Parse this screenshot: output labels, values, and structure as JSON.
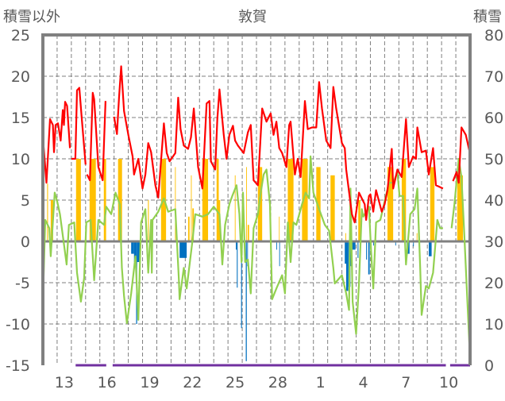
{
  "chart_data": {
    "type": "line",
    "title": "敦賀",
    "ylabel_left": "積雪以外",
    "ylabel_right": "積雪",
    "ylim_left": [
      -15,
      25
    ],
    "ylim_right": [
      0,
      80
    ],
    "yticks_left": [
      "25",
      "20",
      "15",
      "10",
      "5",
      "0",
      "-5",
      "-10",
      "-15"
    ],
    "yticks_right": [
      "80",
      "70",
      "60",
      "50",
      "40",
      "30",
      "20",
      "10",
      "0"
    ],
    "xlim_days": [
      0,
      30
    ],
    "xtick_labels": [
      "13",
      "16",
      "19",
      "22",
      "25",
      "28",
      "1",
      "4",
      "7",
      "10"
    ],
    "grid": true,
    "colors": {
      "red_line": "#ff0000",
      "green_line": "#92d050",
      "orange_bars": "#ffc000",
      "blue_bars": "#0070c0",
      "purple_line": "#7030a0",
      "axis": "#808080"
    },
    "red_line": [
      [
        0,
        12.6
      ],
      [
        0.25,
        7.1
      ],
      [
        0.5,
        14.8
      ],
      [
        0.7,
        14.1
      ],
      [
        0.78,
        10.8
      ],
      [
        0.89,
        14.1
      ],
      [
        1.06,
        14.3
      ],
      [
        1.25,
        12.2
      ],
      [
        1.4,
        15.9
      ],
      [
        1.48,
        14.1
      ],
      [
        1.56,
        16.9
      ],
      [
        1.7,
        16.4
      ],
      [
        1.9,
        11.3
      ],
      null,
      [
        2.0,
        10
      ],
      [
        2.28,
        10
      ],
      [
        2.4,
        18.3
      ],
      [
        2.56,
        18.6
      ],
      [
        2.72,
        15.1
      ],
      [
        3.0,
        9.3
      ],
      null,
      [
        3.1,
        8.1
      ],
      [
        3.3,
        7.4
      ],
      [
        3.5,
        18
      ],
      [
        3.6,
        17.2
      ],
      [
        3.9,
        9
      ],
      [
        4.2,
        7.4
      ],
      [
        4.4,
        17
      ],
      null,
      [
        5.0,
        15.1
      ],
      [
        5.2,
        13
      ],
      [
        5.35,
        17.4
      ],
      [
        5.5,
        21.2
      ],
      [
        5.7,
        15.8
      ],
      [
        6.0,
        12.9
      ],
      [
        6.3,
        10.3
      ],
      [
        6.4,
        8.1
      ],
      [
        6.7,
        10
      ],
      [
        7.0,
        6.4
      ],
      [
        7.2,
        8.1
      ],
      [
        7.4,
        11.9
      ],
      [
        7.6,
        10.8
      ],
      [
        7.9,
        6.8
      ],
      [
        8.1,
        5.3
      ],
      [
        8.5,
        14.3
      ],
      [
        8.7,
        10.7
      ],
      [
        8.9,
        9.7
      ],
      [
        9.3,
        10.7
      ],
      [
        9.5,
        17.4
      ],
      [
        9.67,
        13.6
      ],
      [
        9.9,
        11.6
      ],
      [
        10.2,
        11.2
      ],
      [
        10.4,
        12.6
      ],
      [
        10.6,
        16.1
      ],
      [
        10.9,
        9
      ],
      [
        11.2,
        6.4
      ],
      [
        11.5,
        16.7
      ],
      [
        11.7,
        17
      ],
      [
        11.8,
        9.7
      ],
      [
        12.1,
        8.7
      ],
      [
        12.25,
        14.8
      ],
      [
        12.4,
        18.4
      ],
      [
        12.7,
        12.9
      ],
      [
        12.9,
        10
      ],
      [
        13.1,
        12.9
      ],
      [
        13.35,
        14
      ],
      [
        13.5,
        12.2
      ],
      [
        13.7,
        11.6
      ],
      [
        14.1,
        10.7
      ],
      [
        14.4,
        13.2
      ],
      [
        14.6,
        14.1
      ],
      [
        14.8,
        7.4
      ],
      [
        15.1,
        6.8
      ],
      [
        15.4,
        16.1
      ],
      [
        15.7,
        14.5
      ],
      [
        16.0,
        15.5
      ],
      [
        16.2,
        12.9
      ],
      [
        16.4,
        14.5
      ],
      [
        16.6,
        11.3
      ],
      [
        16.8,
        10.7
      ],
      [
        17.1,
        9
      ],
      [
        17.3,
        14.1
      ],
      [
        17.4,
        14.5
      ],
      [
        17.7,
        8.1
      ],
      [
        17.9,
        10
      ],
      [
        18.1,
        7.8
      ],
      [
        18.4,
        17
      ],
      [
        18.6,
        13.6
      ],
      [
        18.9,
        13.8
      ],
      [
        19.2,
        13.8
      ],
      [
        19.4,
        19.3
      ],
      [
        19.6,
        16.1
      ],
      [
        19.9,
        12.2
      ],
      [
        20.2,
        11.3
      ],
      [
        20.4,
        18.7
      ],
      [
        20.6,
        16.1
      ],
      [
        21.0,
        11.9
      ],
      [
        21.2,
        11.3
      ],
      [
        21.3,
        8.7
      ],
      [
        21.7,
        3.3
      ],
      [
        21.9,
        2.3
      ],
      [
        22.2,
        5.9
      ],
      [
        22.4,
        5.2
      ],
      [
        22.6,
        4.5
      ],
      [
        22.7,
        2.6
      ],
      [
        22.9,
        5.5
      ],
      [
        23.0,
        5.7
      ],
      [
        23.2,
        3.6
      ],
      [
        23.4,
        6.2
      ],
      [
        23.8,
        3.6
      ],
      [
        24.0,
        4.5
      ],
      [
        24.2,
        6.2
      ],
      [
        24.5,
        11.2
      ],
      [
        24.6,
        6.4
      ],
      [
        24.9,
        8.7
      ],
      [
        25.2,
        7.8
      ],
      [
        25.5,
        14.8
      ],
      [
        25.7,
        9
      ],
      [
        26.0,
        10.3
      ],
      [
        26.2,
        10
      ],
      [
        26.3,
        13.8
      ],
      [
        26.6,
        10.8
      ],
      [
        26.9,
        11
      ],
      [
        27.1,
        8.1
      ],
      [
        27.4,
        11.3
      ],
      [
        27.6,
        6.8
      ],
      [
        28.1,
        6.4
      ],
      null,
      [
        28.8,
        7.3
      ],
      [
        29.05,
        8.4
      ],
      [
        29.2,
        7.1
      ],
      [
        29.4,
        13.8
      ],
      [
        29.7,
        12.9
      ],
      [
        29.95,
        11
      ]
    ],
    "green_line": [
      [
        0,
        -7.3
      ],
      [
        0.17,
        2.6
      ],
      [
        0.45,
        1.6
      ],
      [
        0.55,
        -1.8
      ],
      [
        0.83,
        5.9
      ],
      [
        1.0,
        4.9
      ],
      [
        1.2,
        3.3
      ],
      [
        1.5,
        -0.6
      ],
      [
        1.67,
        -2.8
      ],
      [
        1.83,
        2
      ],
      [
        2.2,
        2.3
      ],
      [
        2.4,
        -3.8
      ],
      [
        2.67,
        -7.3
      ],
      [
        2.9,
        -4.4
      ],
      [
        3.05,
        2.3
      ],
      [
        3.35,
        2.6
      ],
      [
        3.6,
        -4.7
      ],
      [
        3.9,
        2.6
      ],
      [
        4.3,
        2
      ],
      [
        4.45,
        4.2
      ],
      [
        4.8,
        3.3
      ],
      [
        5.1,
        5.9
      ],
      [
        5.4,
        4.5
      ],
      [
        5.55,
        -3.2
      ],
      [
        5.7,
        -6.6
      ],
      [
        5.9,
        -9.9
      ],
      [
        6.2,
        -6.3
      ],
      [
        6.5,
        -1.8
      ],
      [
        6.7,
        -9.5
      ],
      [
        6.9,
        2.3
      ],
      [
        7.2,
        3.9
      ],
      [
        7.4,
        -3.8
      ],
      [
        7.6,
        2.6
      ],
      [
        7.65,
        -3.8
      ],
      [
        7.7,
        2.6
      ],
      [
        8.1,
        3.6
      ],
      [
        8.5,
        5.2
      ],
      [
        8.8,
        3.6
      ],
      [
        9.3,
        3.9
      ],
      [
        9.55,
        -4.7
      ],
      [
        9.6,
        -7
      ],
      [
        9.9,
        -3.2
      ],
      [
        10.1,
        -5.7
      ],
      [
        10.5,
        0
      ],
      [
        10.7,
        3.3
      ],
      [
        11.2,
        3
      ],
      [
        11.6,
        3.3
      ],
      [
        12.0,
        4.2
      ],
      [
        12.4,
        3.3
      ],
      [
        12.6,
        -2.8
      ],
      [
        12.8,
        2
      ],
      [
        13.1,
        4.5
      ],
      [
        13.3,
        5.5
      ],
      [
        13.6,
        6.8
      ],
      [
        13.8,
        3.3
      ],
      [
        13.95,
        -2.5
      ],
      [
        14.05,
        5.9
      ],
      [
        14.2,
        -2.5
      ],
      [
        14.4,
        -2.2
      ],
      [
        14.6,
        -6.3
      ],
      [
        14.8,
        1.6
      ],
      [
        15.1,
        3.3
      ],
      [
        15.3,
        5.9
      ],
      [
        15.5,
        8.1
      ],
      [
        15.7,
        8.7
      ],
      [
        15.95,
        4.5
      ],
      [
        16.1,
        -7
      ],
      [
        16.4,
        -5.7
      ],
      [
        16.8,
        -4.1
      ],
      [
        17.0,
        -6.3
      ],
      [
        17.2,
        2.3
      ],
      [
        17.4,
        -2.5
      ],
      [
        17.6,
        2.3
      ],
      [
        17.8,
        2
      ],
      [
        18.2,
        4.5
      ],
      [
        18.45,
        5.9
      ],
      [
        18.7,
        5.2
      ],
      [
        18.8,
        10.3
      ],
      [
        19.0,
        5.9
      ],
      [
        19.4,
        3.9
      ],
      [
        19.8,
        2
      ],
      [
        20.1,
        1.3
      ],
      [
        20.4,
        -3.2
      ],
      [
        20.5,
        -5.1
      ],
      [
        21.0,
        -4.1
      ],
      [
        21.3,
        -6.3
      ],
      [
        21.5,
        -8.3
      ],
      [
        21.6,
        6.4
      ],
      [
        21.75,
        -7.3
      ],
      [
        22.0,
        -11.2
      ],
      [
        22.2,
        -5.1
      ],
      [
        22.4,
        3.9
      ],
      [
        22.5,
        3
      ],
      [
        22.9,
        4.2
      ],
      [
        23.05,
        -1.3
      ],
      [
        23.2,
        -5.7
      ],
      [
        23.4,
        2.3
      ],
      [
        23.7,
        2.6
      ],
      [
        24.3,
        7.1
      ],
      [
        24.6,
        7.1
      ],
      [
        24.9,
        8.4
      ],
      [
        25.05,
        5.5
      ],
      [
        25.3,
        5.5
      ],
      [
        25.5,
        -2.8
      ],
      [
        25.8,
        3.3
      ],
      [
        26.1,
        3.9
      ],
      [
        26.3,
        6.4
      ],
      [
        26.5,
        -3.2
      ],
      [
        26.6,
        -8.9
      ],
      [
        26.9,
        -5.4
      ],
      [
        27.1,
        -5.7
      ],
      [
        27.4,
        -3.8
      ],
      [
        27.7,
        2.6
      ],
      [
        27.9,
        1.6
      ],
      [
        28.1,
        1.6
      ],
      null,
      [
        28.7,
        1.6
      ],
      [
        28.9,
        4.5
      ],
      [
        29.2,
        10
      ],
      [
        29.4,
        7.8
      ],
      [
        29.6,
        0.7
      ],
      [
        29.95,
        -12.4
      ]
    ],
    "orange_bars": [
      [
        0.3,
        0.36,
        7
      ],
      [
        0.55,
        0.72,
        5
      ],
      [
        2.33,
        2.67,
        10
      ],
      [
        3.28,
        3.72,
        10
      ],
      [
        4.28,
        4.44,
        10
      ],
      [
        5.28,
        5.56,
        10
      ],
      [
        7.38,
        7.44,
        5
      ],
      [
        8.3,
        8.65,
        10
      ],
      [
        9.28,
        9.33,
        9
      ],
      [
        10.2,
        10.3,
        3
      ],
      [
        10.4,
        10.45,
        8
      ],
      [
        10.5,
        10.6,
        4
      ],
      [
        11.2,
        11.6,
        10
      ],
      [
        12.2,
        12.35,
        10
      ],
      [
        12.35,
        12.45,
        5
      ],
      [
        13.48,
        13.53,
        8
      ],
      [
        14.28,
        14.33,
        9
      ],
      [
        14.38,
        14.48,
        2
      ],
      [
        15.1,
        15.4,
        9
      ],
      [
        16.58,
        16.62,
        3
      ],
      [
        17.2,
        17.6,
        10
      ],
      [
        18.2,
        18.6,
        10
      ],
      [
        19.2,
        19.5,
        9
      ],
      [
        20.2,
        20.5,
        8
      ],
      [
        21.25,
        21.3,
        1
      ],
      [
        22.15,
        22.3,
        5
      ],
      [
        24.2,
        24.6,
        9
      ],
      [
        25.2,
        25.5,
        10
      ],
      [
        26.25,
        26.3,
        1
      ],
      [
        27.2,
        27.5,
        9
      ],
      [
        29.1,
        29.5,
        8
      ]
    ],
    "blue_bars": [
      [
        6.2,
        6.4,
        -1.5
      ],
      [
        6.4,
        6.55,
        -2.5
      ],
      [
        6.55,
        6.62,
        -10
      ],
      [
        6.62,
        6.8,
        -2.5
      ],
      [
        9.6,
        10.1,
        -2
      ],
      [
        13.55,
        13.62,
        -1
      ],
      [
        13.62,
        13.68,
        -5.6
      ],
      [
        13.92,
        13.98,
        -10.5
      ],
      [
        14.25,
        14.32,
        -14.5
      ],
      [
        14.35,
        14.4,
        -3
      ],
      [
        16.4,
        16.45,
        -1
      ],
      [
        16.6,
        16.65,
        -3
      ],
      [
        21.2,
        21.3,
        -2.7
      ],
      [
        21.3,
        21.45,
        -6
      ],
      [
        21.45,
        21.6,
        -5.5
      ],
      [
        21.6,
        21.7,
        -3
      ],
      [
        21.7,
        21.95,
        -1
      ],
      [
        22.1,
        22.16,
        -2
      ],
      [
        22.7,
        22.76,
        -2.2
      ],
      [
        22.85,
        22.95,
        -4
      ],
      [
        23.2,
        23.25,
        -0.5
      ],
      [
        24.75,
        24.8,
        -0.5
      ],
      [
        25.55,
        25.75,
        -1.5
      ],
      [
        26.0,
        26.05,
        -0.6
      ],
      [
        27.1,
        27.3,
        -1.8
      ],
      [
        29.9,
        29.95,
        -2
      ]
    ],
    "purple_line_segments_right_axis": [
      [
        2.3,
        4.45,
        0
      ],
      [
        4.9,
        28.3,
        0
      ],
      [
        28.6,
        30,
        0
      ]
    ]
  }
}
